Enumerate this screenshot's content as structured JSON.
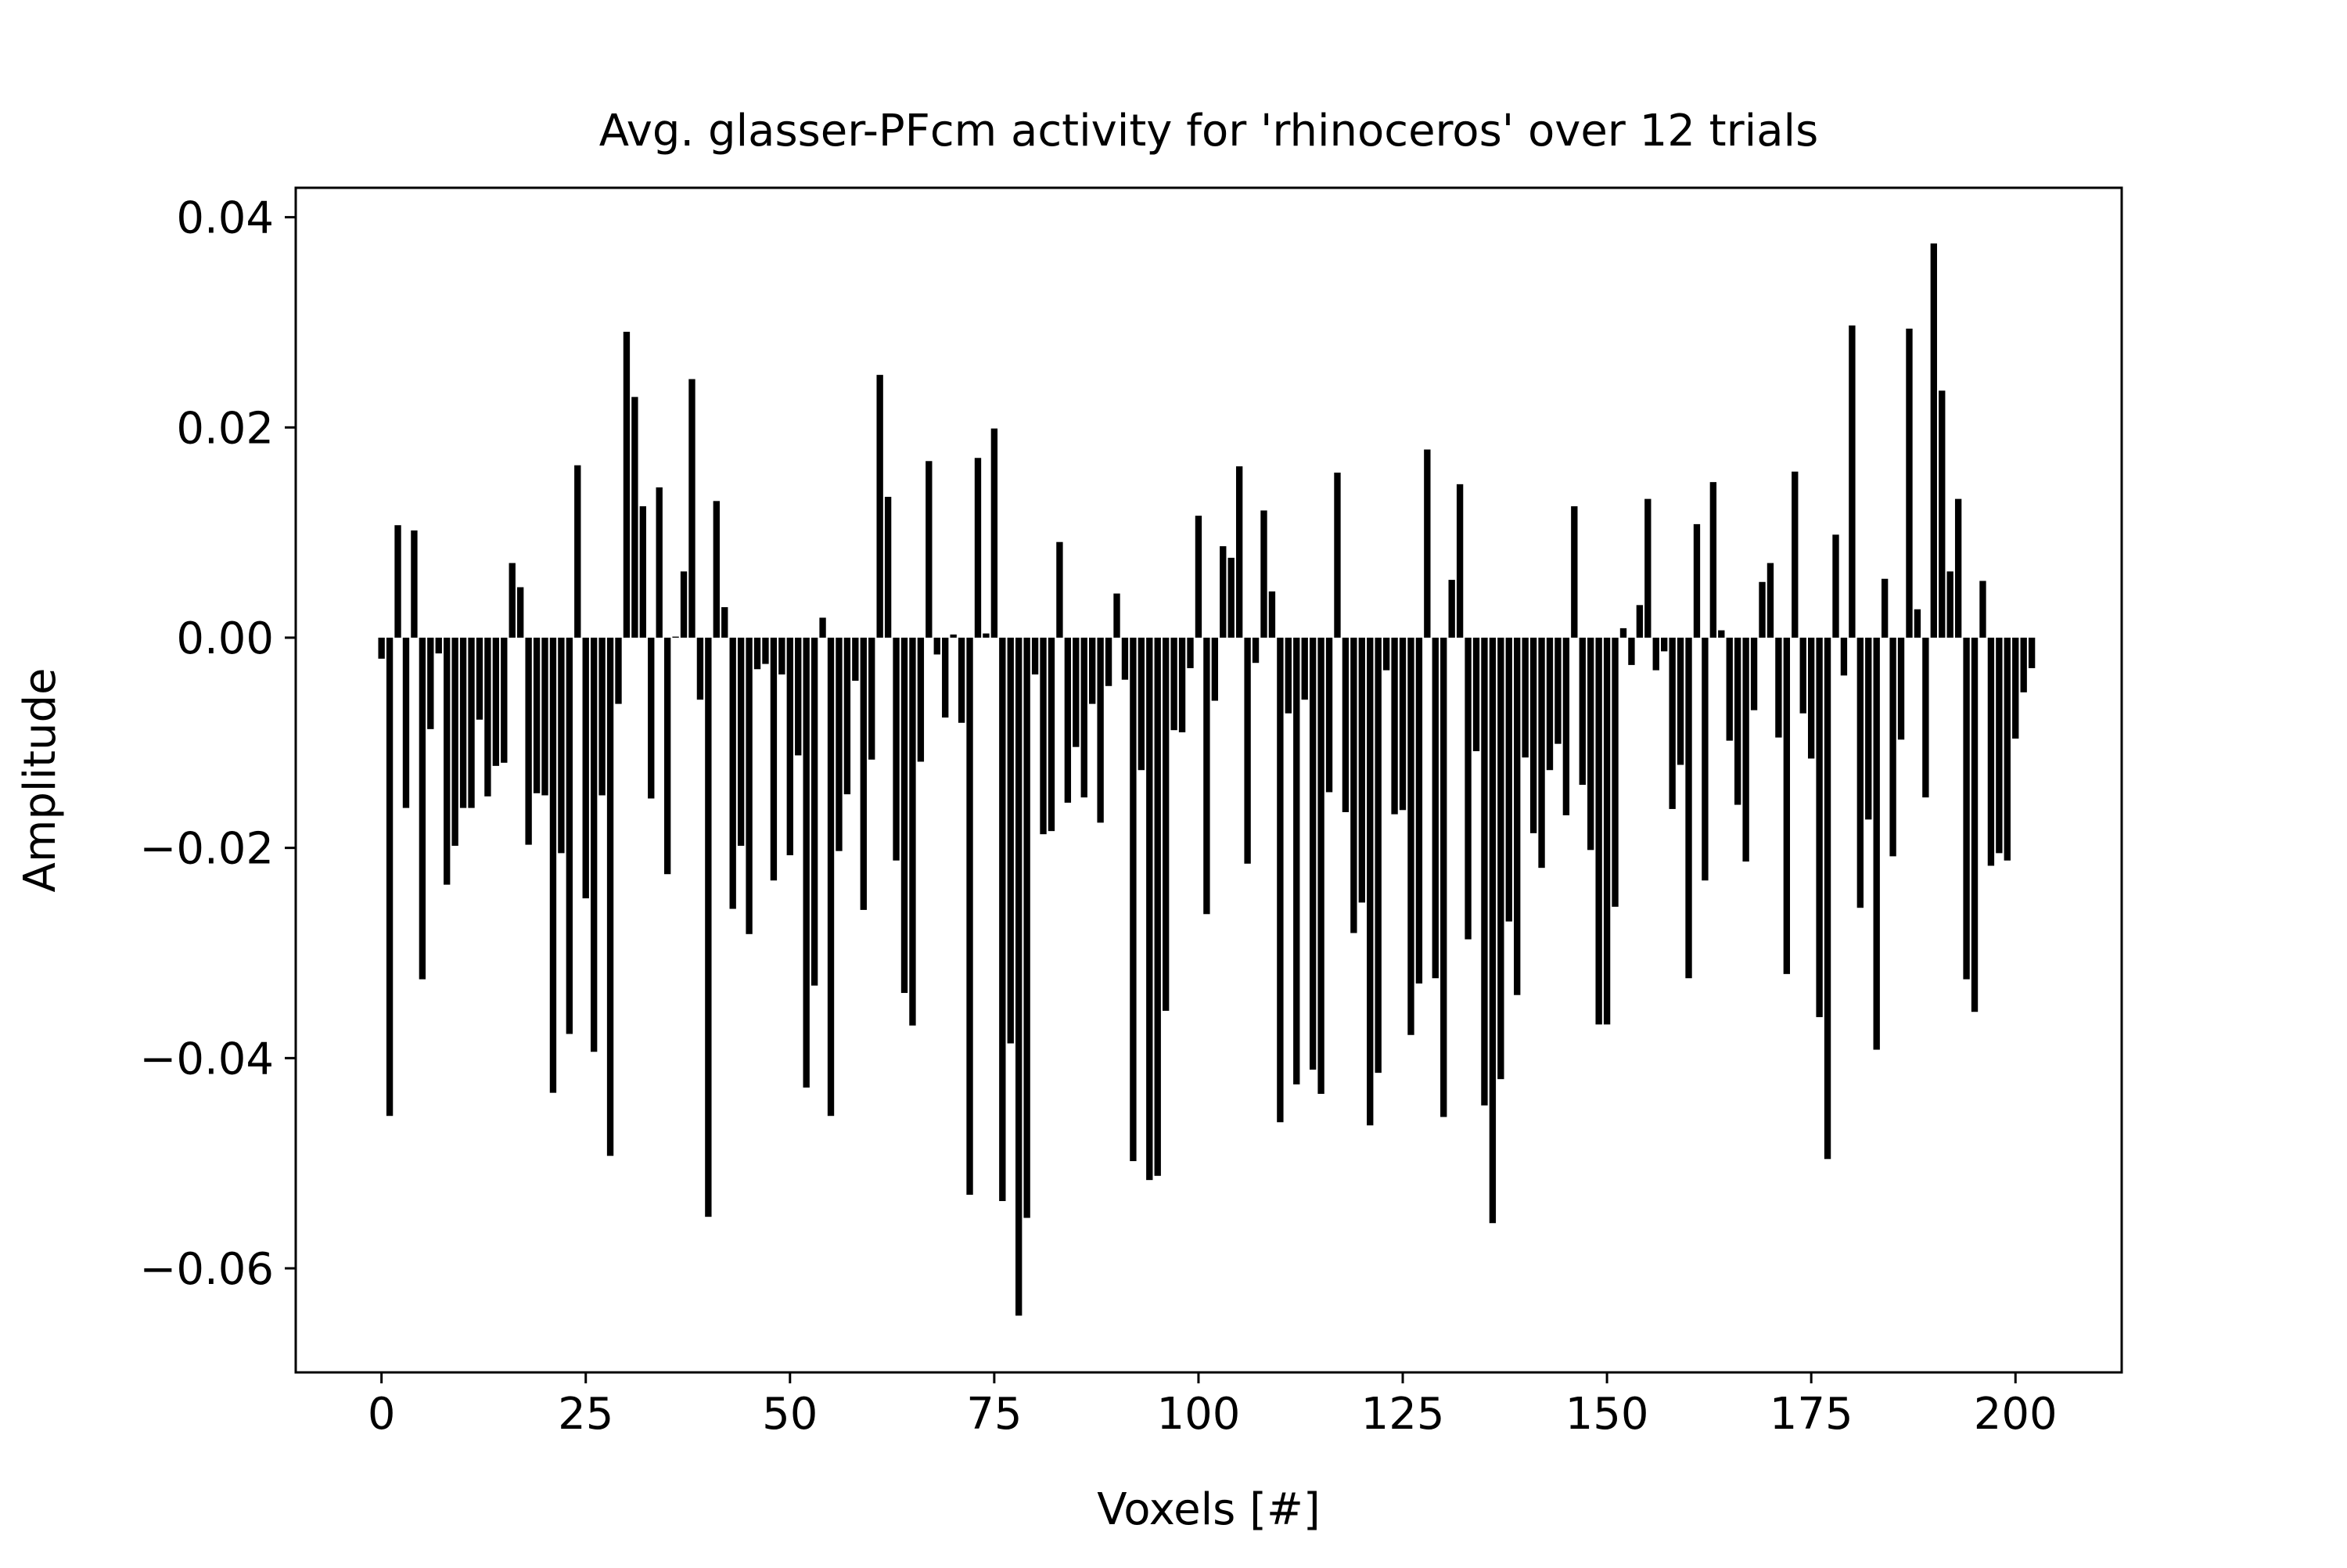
{
  "chart_data": {
    "type": "bar",
    "title": "Avg. glasser-PFcm activity for 'rhinoceros' over 12 trials",
    "xlabel": "Voxels [#]",
    "ylabel": "Amplitude",
    "xlim": [
      -10.5,
      213
    ],
    "ylim": [
      -0.0699,
      0.0428
    ],
    "xticks": [
      0,
      25,
      50,
      75,
      100,
      125,
      150,
      175,
      200
    ],
    "xtick_labels": [
      "0",
      "25",
      "50",
      "75",
      "100",
      "125",
      "150",
      "175",
      "200"
    ],
    "yticks": [
      0.04,
      0.02,
      0.0,
      -0.02,
      -0.04,
      -0.06
    ],
    "ytick_labels": [
      "0.04",
      "0.02",
      "0.00",
      "−0.02",
      "−0.04",
      "−0.06"
    ],
    "grid": false,
    "bar_color": "#000000",
    "x": [
      0,
      1,
      2,
      3,
      4,
      5,
      6,
      7,
      8,
      9,
      10,
      11,
      12,
      13,
      14,
      15,
      16,
      17,
      18,
      19,
      20,
      21,
      22,
      23,
      24,
      25,
      26,
      27,
      28,
      29,
      30,
      31,
      32,
      33,
      34,
      35,
      36,
      37,
      38,
      39,
      40,
      41,
      42,
      43,
      44,
      45,
      46,
      47,
      48,
      49,
      50,
      51,
      52,
      53,
      54,
      55,
      56,
      57,
      58,
      59,
      60,
      61,
      62,
      63,
      64,
      65,
      66,
      67,
      68,
      69,
      70,
      71,
      72,
      73,
      74,
      75,
      76,
      77,
      78,
      79,
      80,
      81,
      82,
      83,
      84,
      85,
      86,
      87,
      88,
      89,
      90,
      91,
      92,
      93,
      94,
      95,
      96,
      97,
      98,
      99,
      100,
      101,
      102,
      103,
      104,
      105,
      106,
      107,
      108,
      109,
      110,
      111,
      112,
      113,
      114,
      115,
      116,
      117,
      118,
      119,
      120,
      121,
      122,
      123,
      124,
      125,
      126,
      127,
      128,
      129,
      130,
      131,
      132,
      133,
      134,
      135,
      136,
      137,
      138,
      139,
      140,
      141,
      142,
      143,
      144,
      145,
      146,
      147,
      148,
      149,
      150,
      151,
      152,
      153,
      154,
      155,
      156,
      157,
      158,
      159,
      160,
      161,
      162,
      163,
      164,
      165,
      166,
      167,
      168,
      169,
      170,
      171,
      172,
      173,
      174,
      175,
      176,
      177,
      178,
      179,
      180,
      181,
      182,
      183,
      184,
      185,
      186,
      187,
      188,
      189,
      190,
      191,
      192,
      193,
      194,
      195,
      196,
      197,
      198,
      199,
      200,
      201,
      202
    ],
    "values": [
      -0.002,
      -0.0455,
      0.0107,
      -0.0162,
      0.0102,
      -0.0325,
      -0.0087,
      -0.0015,
      -0.0235,
      -0.0198,
      -0.0162,
      -0.0162,
      -0.0078,
      -0.0151,
      -0.0122,
      -0.0119,
      0.0071,
      0.0048,
      -0.0197,
      -0.0148,
      -0.015,
      -0.0433,
      -0.0205,
      -0.0377,
      0.0164,
      -0.0248,
      -0.0394,
      -0.015,
      -0.0493,
      -0.0063,
      0.0291,
      0.0229,
      0.0125,
      -0.0153,
      0.0143,
      -0.0225,
      0.0001,
      0.0063,
      0.0246,
      -0.0059,
      -0.0551,
      0.013,
      0.0029,
      -0.0258,
      -0.0198,
      -0.0282,
      -0.003,
      -0.0025,
      -0.0231,
      -0.0035,
      -0.0207,
      -0.0112,
      -0.0428,
      -0.0331,
      0.0019,
      -0.0455,
      -0.0203,
      -0.0149,
      -0.0041,
      -0.0259,
      -0.0116,
      0.025,
      0.0134,
      -0.0212,
      -0.0338,
      -0.0369,
      -0.0118,
      0.0168,
      -0.0016,
      -0.0076,
      0.0003,
      -0.0081,
      -0.053,
      0.0171,
      0.0004,
      0.0199,
      -0.0536,
      -0.0386,
      -0.0645,
      -0.0552,
      -0.0035,
      -0.0187,
      -0.0184,
      0.0091,
      -0.0157,
      -0.0104,
      -0.0152,
      -0.0063,
      -0.0176,
      -0.0046,
      0.0042,
      -0.004,
      -0.0498,
      -0.0126,
      -0.0516,
      -0.0512,
      -0.0355,
      -0.0088,
      -0.009,
      -0.0029,
      0.0116,
      -0.0263,
      -0.006,
      0.0087,
      0.0076,
      0.0163,
      -0.0215,
      -0.0024,
      0.0121,
      0.0044,
      -0.0461,
      -0.0072,
      -0.0425,
      -0.0059,
      -0.0411,
      -0.0434,
      -0.0147,
      0.0157,
      -0.0166,
      -0.0281,
      -0.0252,
      -0.0464,
      -0.0414,
      -0.0031,
      -0.0168,
      -0.0164,
      -0.0378,
      -0.0329,
      0.0179,
      -0.0324,
      -0.0456,
      0.0055,
      0.0146,
      -0.0287,
      -0.0108,
      -0.0445,
      -0.0557,
      -0.042,
      -0.027,
      -0.034,
      -0.0114,
      -0.0186,
      -0.0219,
      -0.0126,
      -0.0101,
      -0.0169,
      0.0125,
      -0.014,
      -0.0202,
      -0.0368,
      -0.0368,
      -0.0256,
      0.0009,
      -0.0026,
      0.0031,
      0.0132,
      -0.0031,
      -0.0013,
      -0.0163,
      -0.0121,
      -0.0324,
      0.0108,
      -0.0231,
      0.0148,
      0.0007,
      -0.0098,
      -0.0159,
      -0.0213,
      -0.0069,
      0.0053,
      0.0071,
      -0.0095,
      -0.032,
      0.0158,
      -0.0072,
      -0.0115,
      -0.0361,
      -0.0496,
      0.0098,
      -0.0036,
      0.0297,
      -0.0257,
      -0.0173,
      -0.0392,
      0.0056,
      -0.0208,
      -0.0097,
      0.0294,
      0.0027,
      -0.0152,
      0.0375,
      0.0235,
      0.0063,
      0.0132,
      -0.0325,
      -0.0356,
      0.0054,
      -0.0217,
      -0.0205,
      -0.0212,
      -0.0096,
      -0.0052,
      -0.0029
    ]
  }
}
